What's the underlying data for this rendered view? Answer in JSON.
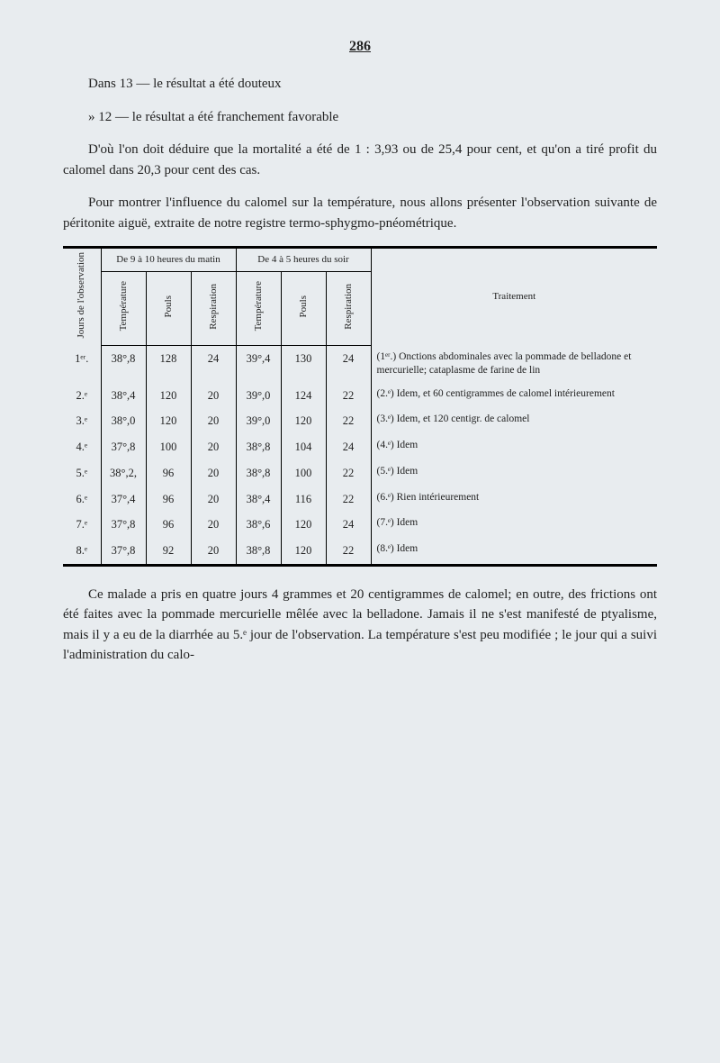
{
  "page_number": "286",
  "paragraphs": {
    "p1": "Dans 13 — le résultat a été douteux",
    "p2": "» 12 — le résultat a été franchement favorable",
    "p3": "D'où l'on doit déduire que la mortalité a été de 1 : 3,93 ou de 25,4 pour cent, et qu'on a tiré profit du calomel dans 20,3 pour cent des cas.",
    "p4": "Pour montrer l'influence du calomel sur la température, nous allons présenter l'observation suivante de péritonite aiguë, extraite de notre registre termo-sphygmo-pnéométrique.",
    "p5": "Ce malade a pris en quatre jours 4 grammes et 20 centigrammes de calomel; en outre, des frictions ont été faites avec la pommade mercurielle mêlée avec la belladone. Jamais il ne s'est manifesté de ptyalisme, mais il y a eu de la diarrhée au 5.ᵉ jour de l'observation. La température s'est peu modifiée ; le jour qui a suivi l'administration du calo-"
  },
  "table": {
    "group_headers": {
      "jours": "Jours de l'observation",
      "morning": "De 9 à 10 heures du matin",
      "evening": "De 4 à 5 heures du soir",
      "treatment": "Traitement"
    },
    "col_headers": {
      "temp": "Température",
      "pouls": "Pouls",
      "resp": "Respiration"
    },
    "rows": [
      {
        "j": "1ᵉʳ.",
        "t1": "38°,8",
        "p1": "128",
        "r1": "24",
        "t2": "39°,4",
        "p2": "130",
        "r2": "24",
        "tr": "(1ᵉʳ.) Onctions abdominales avec la pommade de belladone et mercurielle; cataplasme de farine de lin"
      },
      {
        "j": "2.ᵉ",
        "t1": "38°,4",
        "p1": "120",
        "r1": "20",
        "t2": "39°,0",
        "p2": "124",
        "r2": "22",
        "tr": "(2.ᵉ) Idem, et 60 centigrammes de calomel intérieurement"
      },
      {
        "j": "3.ᵉ",
        "t1": "38°,0",
        "p1": "120",
        "r1": "20",
        "t2": "39°,0",
        "p2": "120",
        "r2": "22",
        "tr": "(3.ᵉ) Idem, et 120 centigr. de calomel"
      },
      {
        "j": "4.ᵉ",
        "t1": "37°,8",
        "p1": "100",
        "r1": "20",
        "t2": "38°,8",
        "p2": "104",
        "r2": "24",
        "tr": "(4.ᵉ) Idem"
      },
      {
        "j": "5.ᵉ",
        "t1": "38°,2,",
        "p1": "96",
        "r1": "20",
        "t2": "38°,8",
        "p2": "100",
        "r2": "22",
        "tr": "(5.ᵉ) Idem"
      },
      {
        "j": "6.ᵉ",
        "t1": "37°,4",
        "p1": "96",
        "r1": "20",
        "t2": "38°,4",
        "p2": "116",
        "r2": "22",
        "tr": "(6.ᵉ) Rien intérieurement"
      },
      {
        "j": "7.ᵉ",
        "t1": "37°,8",
        "p1": "96",
        "r1": "20",
        "t2": "38°,6",
        "p2": "120",
        "r2": "24",
        "tr": "(7.ᵉ) Idem"
      },
      {
        "j": "8.ᵉ",
        "t1": "37°,8",
        "p1": "92",
        "r1": "20",
        "t2": "38°,8",
        "p2": "120",
        "r2": "22",
        "tr": "(8.ᵉ) Idem"
      }
    ]
  },
  "style": {
    "background_color": "#e8ecef",
    "text_color": "#222222",
    "rule_color": "#000000",
    "body_fontsize": 15,
    "table_fontsize": 12
  }
}
